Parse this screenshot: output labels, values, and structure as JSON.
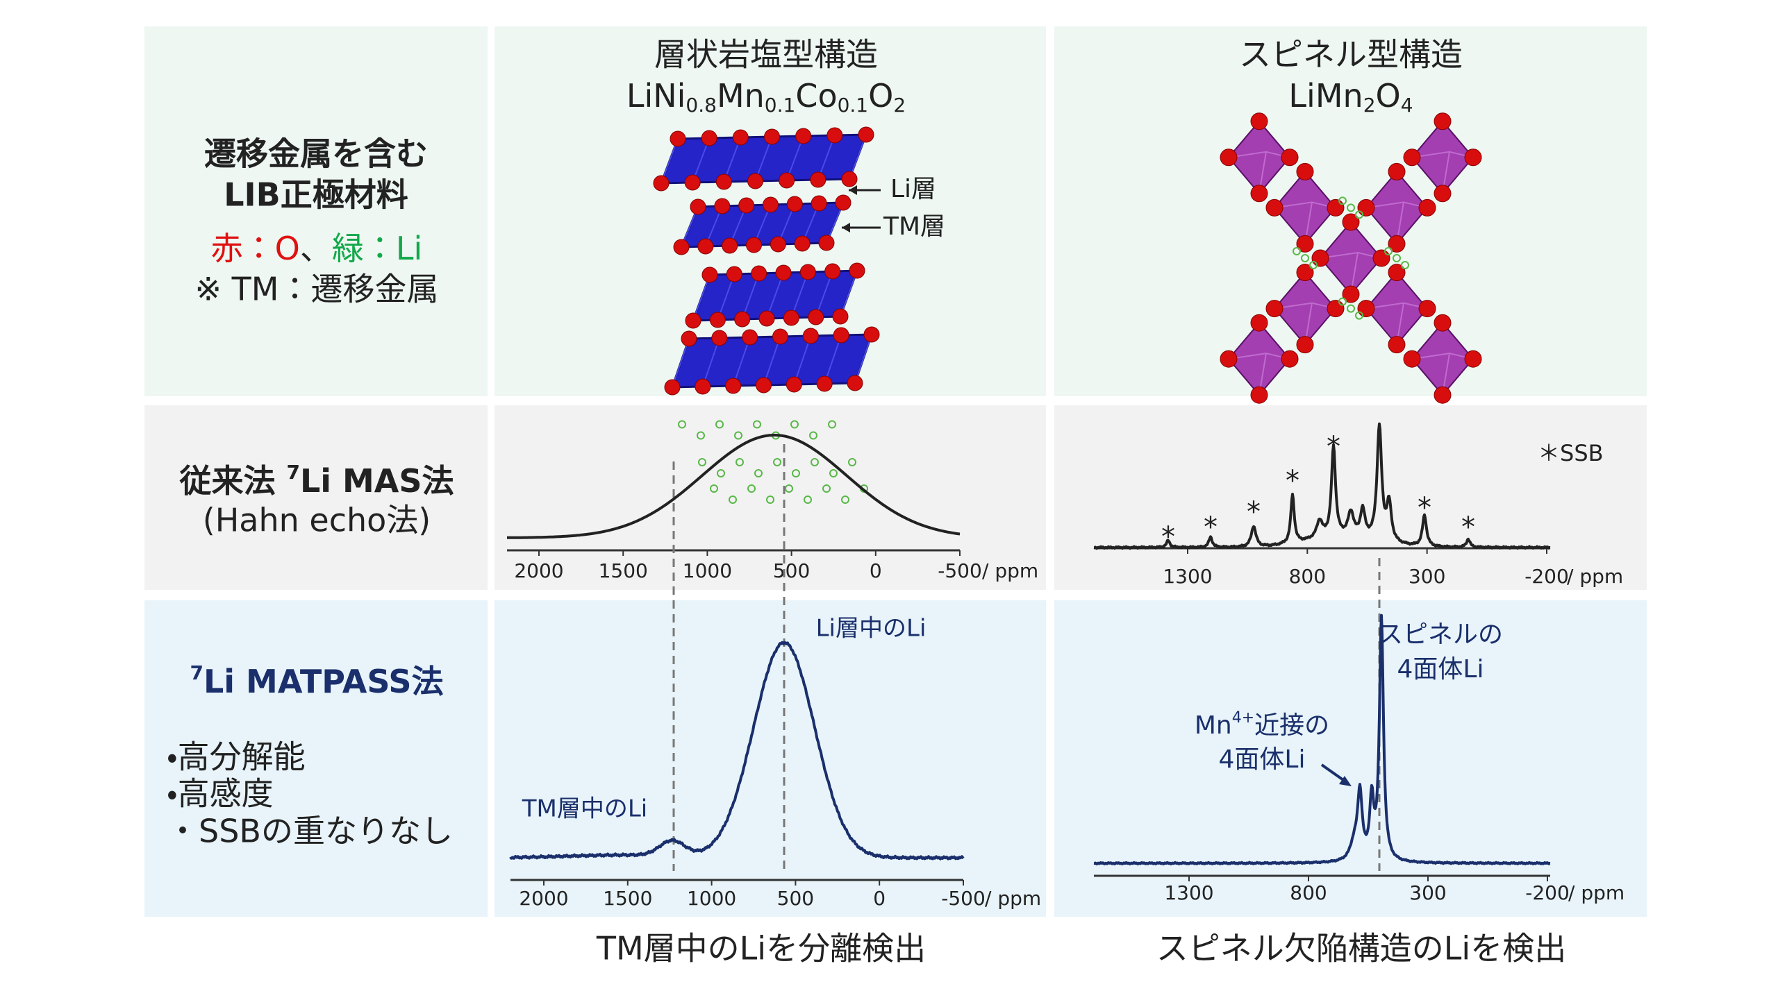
{
  "structure": {
    "label": [
      "遷移金属を含む",
      "LIB正極材料"
    ],
    "legend_red": "赤：O",
    "legend_sep": "、",
    "legend_green": "緑：Li",
    "note": "※ TM：遷移金属"
  },
  "layered": {
    "title": "層状岩塩型構造",
    "formula": [
      "LiNi",
      "0.8",
      "Mn",
      "0.1",
      "Co",
      "0.1",
      "O",
      "2"
    ],
    "labels": [
      "Li層",
      "TM層"
    ]
  },
  "spinel": {
    "title": "スピネル型構造",
    "formula": [
      "LiMn",
      "2",
      "O",
      "4"
    ]
  },
  "mas": {
    "label": "従来法 ",
    "sup": "7",
    "label_rest": "Li MAS法",
    "sub": "(Hahn echo法)",
    "ssb_marker": "*",
    "ssb_legend": "＊SSB"
  },
  "axes": {
    "layered_ticks": [
      2000,
      1500,
      1000,
      500,
      0,
      -500
    ],
    "spinel_ticks": [
      1300,
      800,
      300,
      -200
    ],
    "unit": "/ ppm"
  },
  "matpass": {
    "sup": "7",
    "label_rest": "Li MATPASS法",
    "bullets": [
      "・高分解能",
      "・高感度",
      "・SSBの重なりなし"
    ],
    "layered_labels": [
      "TM層中のLi",
      "Li層中のLi"
    ],
    "spinel_labels": [
      "スピネルの",
      "4面体Li",
      "Mn",
      "4+",
      "近接の",
      "4面体Li"
    ]
  },
  "captions": [
    "TM層中のLiを分離検出",
    "スピネル欠陥構造のLiを検出"
  ]
}
